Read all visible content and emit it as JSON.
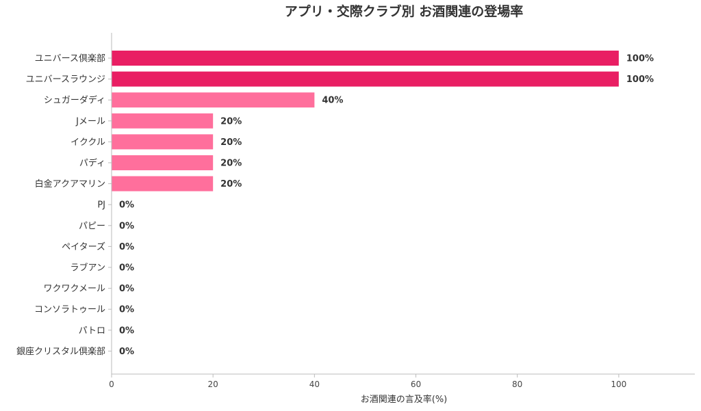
{
  "chart_data": {
    "type": "bar",
    "orientation": "horizontal",
    "title": "アプリ・交際クラブ別 お酒関連の登場率",
    "xlabel": "お酒関連の言及率(%)",
    "ylabel": "",
    "xlim": [
      0,
      115
    ],
    "xticks": [
      0,
      20,
      40,
      60,
      80,
      100
    ],
    "grid": false,
    "categories": [
      "ユニバース倶楽部",
      "ユニバースラウンジ",
      "シュガーダディ",
      "Jメール",
      "イククル",
      "パディ",
      "白金アクアマリン",
      "PJ",
      "パピー",
      "ペイターズ",
      "ラブアン",
      "ワクワクメール",
      "コンソラトゥール",
      "パトロ",
      "銀座クリスタル倶楽部"
    ],
    "values": [
      100,
      100,
      40,
      20,
      20,
      20,
      20,
      0,
      0,
      0,
      0,
      0,
      0,
      0,
      0
    ],
    "value_labels": [
      "100%",
      "100%",
      "40%",
      "20%",
      "20%",
      "20%",
      "20%",
      "0%",
      "0%",
      "0%",
      "0%",
      "0%",
      "0%",
      "0%",
      "0%"
    ],
    "colors": {
      "top": "#e91e63",
      "other": "#ff6f9c"
    }
  }
}
